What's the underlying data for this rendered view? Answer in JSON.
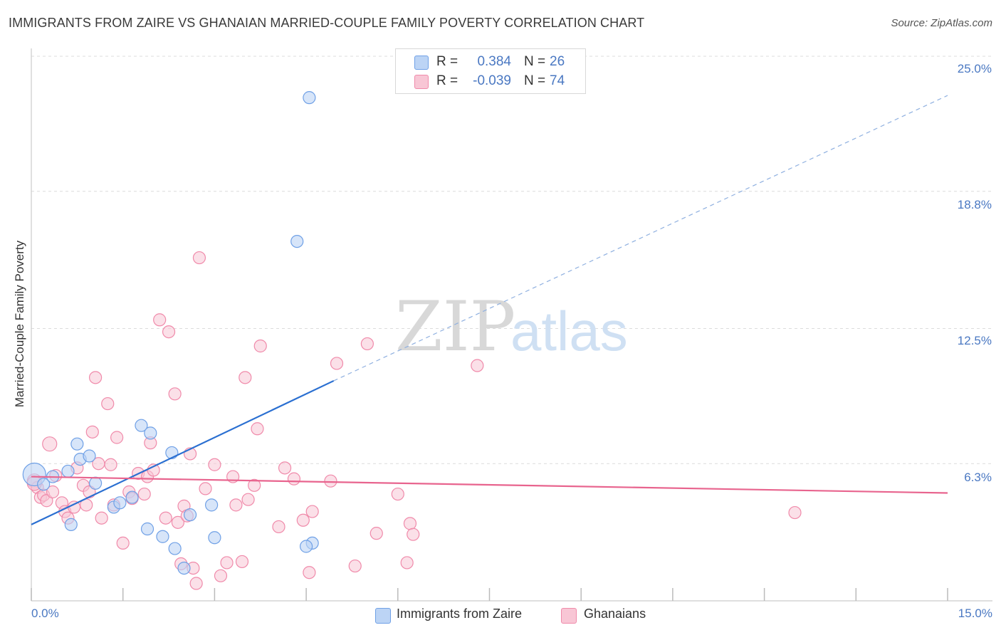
{
  "title": "IMMIGRANTS FROM ZAIRE VS GHANAIAN MARRIED-COUPLE FAMILY POVERTY CORRELATION CHART",
  "source": "Source: ZipAtlas.com",
  "watermark": {
    "zip": "ZIP",
    "atlas": "atlas"
  },
  "legend": {
    "rows": [
      {
        "r_label": "R =",
        "r_value": "0.384",
        "n_label": "N =",
        "n_value": "26",
        "color": "#a9c7f2"
      },
      {
        "r_label": "R =",
        "r_value": "-0.039",
        "n_label": "N =",
        "n_value": "74",
        "color": "#f6b8cb"
      }
    ]
  },
  "bottom_legend": [
    {
      "label": "Immigrants from Zaire",
      "color": "#a9c7f2"
    },
    {
      "label": "Ghanaians",
      "color": "#f6b8cb"
    }
  ],
  "chart_data": {
    "type": "scatter",
    "title": "IMMIGRANTS FROM ZAIRE VS GHANAIAN MARRIED-COUPLE FAMILY POVERTY CORRELATION CHART",
    "xlabel": "",
    "ylabel": "Married-Couple Family Poverty",
    "xlim": [
      0,
      15
    ],
    "ylim": [
      0,
      25
    ],
    "x_tick_labels": [
      "0.0%",
      "15.0%"
    ],
    "y_ticks": [
      6.3,
      12.5,
      18.8,
      25.0
    ],
    "y_tick_labels": [
      "6.3%",
      "12.5%",
      "18.8%",
      "25.0%"
    ],
    "grid": true,
    "series": [
      {
        "name": "Immigrants from Zaire",
        "color": "#6fa0e6",
        "fill": "#bcd4f5",
        "trend": {
          "x": [
            0,
            4.95
          ],
          "y": [
            3.5,
            10.1
          ],
          "extended_to": [
            15.0,
            23.2
          ],
          "color": "#2a6fd1"
        },
        "points": [
          [
            0.05,
            5.8
          ],
          [
            0.2,
            5.35
          ],
          [
            0.35,
            5.7
          ],
          [
            0.6,
            5.95
          ],
          [
            0.65,
            3.5
          ],
          [
            0.75,
            7.2
          ],
          [
            0.8,
            6.5
          ],
          [
            0.95,
            6.65
          ],
          [
            1.05,
            5.4
          ],
          [
            1.35,
            4.3
          ],
          [
            1.45,
            4.5
          ],
          [
            1.65,
            4.75
          ],
          [
            1.8,
            8.05
          ],
          [
            1.9,
            3.3
          ],
          [
            1.95,
            7.7
          ],
          [
            2.15,
            2.95
          ],
          [
            2.3,
            6.8
          ],
          [
            2.35,
            2.4
          ],
          [
            2.5,
            1.5
          ],
          [
            2.6,
            3.95
          ],
          [
            2.95,
            4.4
          ],
          [
            3.0,
            2.9
          ],
          [
            4.35,
            16.5
          ],
          [
            4.55,
            23.1
          ],
          [
            4.6,
            2.65
          ],
          [
            4.5,
            2.5
          ]
        ]
      },
      {
        "name": "Ghanaians",
        "color": "#f08aaa",
        "fill": "#f8c6d5",
        "trend": {
          "x": [
            0,
            15.0
          ],
          "y": [
            5.7,
            4.95
          ],
          "color": "#e8648e"
        },
        "points": [
          [
            0.05,
            5.5
          ],
          [
            0.1,
            5.2
          ],
          [
            0.15,
            4.75
          ],
          [
            0.2,
            4.85
          ],
          [
            0.25,
            4.6
          ],
          [
            0.3,
            7.2
          ],
          [
            0.35,
            5.0
          ],
          [
            0.4,
            5.75
          ],
          [
            0.5,
            4.5
          ],
          [
            0.55,
            4.1
          ],
          [
            0.6,
            3.8
          ],
          [
            0.7,
            4.3
          ],
          [
            0.75,
            6.1
          ],
          [
            0.85,
            5.3
          ],
          [
            0.9,
            4.4
          ],
          [
            0.95,
            5.0
          ],
          [
            1.0,
            7.75
          ],
          [
            1.05,
            10.25
          ],
          [
            1.1,
            6.3
          ],
          [
            1.15,
            3.8
          ],
          [
            1.25,
            9.05
          ],
          [
            1.3,
            6.25
          ],
          [
            1.35,
            4.4
          ],
          [
            1.4,
            7.5
          ],
          [
            1.5,
            2.65
          ],
          [
            1.6,
            5.0
          ],
          [
            1.65,
            4.7
          ],
          [
            1.75,
            5.85
          ],
          [
            1.85,
            4.9
          ],
          [
            1.9,
            5.7
          ],
          [
            1.95,
            7.25
          ],
          [
            2.0,
            6.0
          ],
          [
            2.1,
            12.9
          ],
          [
            2.2,
            3.8
          ],
          [
            2.25,
            12.35
          ],
          [
            2.35,
            9.5
          ],
          [
            2.4,
            3.6
          ],
          [
            2.45,
            1.7
          ],
          [
            2.5,
            4.35
          ],
          [
            2.55,
            3.9
          ],
          [
            2.6,
            6.75
          ],
          [
            2.65,
            1.5
          ],
          [
            2.7,
            0.8
          ],
          [
            2.75,
            15.75
          ],
          [
            2.85,
            5.15
          ],
          [
            3.0,
            6.25
          ],
          [
            3.1,
            1.15
          ],
          [
            3.2,
            1.75
          ],
          [
            3.3,
            5.7
          ],
          [
            3.35,
            4.4
          ],
          [
            3.45,
            1.8
          ],
          [
            3.5,
            10.25
          ],
          [
            3.55,
            4.65
          ],
          [
            3.65,
            5.3
          ],
          [
            3.7,
            7.9
          ],
          [
            3.75,
            11.7
          ],
          [
            4.05,
            3.4
          ],
          [
            4.15,
            6.1
          ],
          [
            4.3,
            5.6
          ],
          [
            4.45,
            3.7
          ],
          [
            4.55,
            1.3
          ],
          [
            4.6,
            4.1
          ],
          [
            4.9,
            5.5
          ],
          [
            5.0,
            10.9
          ],
          [
            5.3,
            1.6
          ],
          [
            5.5,
            11.8
          ],
          [
            5.65,
            3.1
          ],
          [
            6.0,
            4.9
          ],
          [
            6.15,
            1.75
          ],
          [
            6.2,
            3.55
          ],
          [
            6.25,
            3.05
          ],
          [
            7.3,
            10.8
          ],
          [
            12.5,
            4.05
          ],
          [
            0.05,
            5.4
          ]
        ]
      }
    ]
  }
}
